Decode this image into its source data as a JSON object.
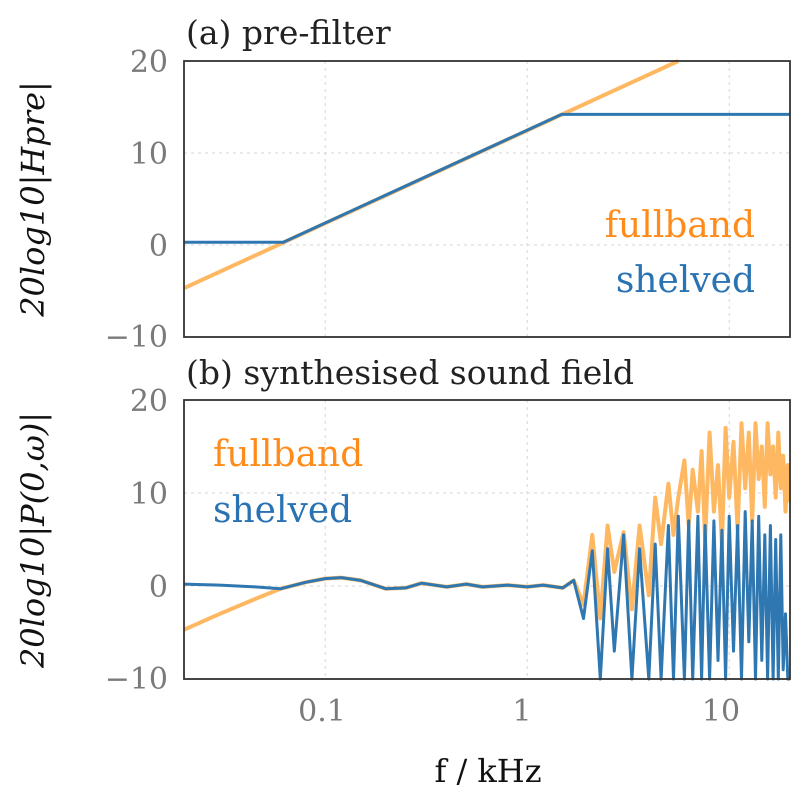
{
  "colors": {
    "fullband": "#ffb862",
    "shelved": "#2f77b1",
    "fullband_label": "#ff8c1a",
    "shelved_label": "#2a73b3",
    "tick": "#7a7a7a"
  },
  "xlabel": "f  / kHz",
  "chart_data": [
    {
      "type": "line",
      "title": "(a) pre-filter",
      "ylabel": "20log10|Hpre|",
      "xscale": "log",
      "xlim": [
        0.02,
        20
      ],
      "ylim": [
        -10,
        20
      ],
      "xticks": [
        0.1,
        1,
        10
      ],
      "xtick_labels": [
        "",
        "",
        ""
      ],
      "yticks": [
        -10,
        0,
        10,
        20
      ],
      "ytick_labels": [
        "−10",
        "0",
        "10",
        "20"
      ],
      "grid": true,
      "legend": [
        "fullband",
        "shelved"
      ],
      "legend_position": "right",
      "series": [
        {
          "name": "fullband",
          "x": [
            0.02,
            5.6
          ],
          "y": [
            -4.7,
            20
          ]
        },
        {
          "name": "shelved",
          "x": [
            0.02,
            0.062,
            1.48,
            20
          ],
          "y": [
            0.3,
            0.3,
            14.2,
            14.2
          ]
        }
      ]
    },
    {
      "type": "line",
      "title": "(b) synthesised sound field",
      "ylabel": "20log10|P(0,ω)|",
      "xscale": "log",
      "xlim": [
        0.02,
        20
      ],
      "ylim": [
        -10,
        20
      ],
      "xticks": [
        0.1,
        1,
        10
      ],
      "xtick_labels": [
        "0.1",
        "1",
        "10"
      ],
      "yticks": [
        -10,
        0,
        10,
        20
      ],
      "ytick_labels": [
        "−10",
        "0",
        "10",
        "20"
      ],
      "grid": true,
      "legend": [
        "fullband",
        "shelved"
      ],
      "legend_position": "upper left",
      "series": [
        {
          "name": "fullband",
          "x": [
            0.02,
            0.03,
            0.045,
            0.06,
            0.08,
            0.1,
            0.12,
            0.15,
            0.2,
            0.25,
            0.3,
            0.4,
            0.5,
            0.6,
            0.8,
            1.0,
            1.2,
            1.5,
            1.7,
            1.9,
            2.1,
            2.3,
            2.5,
            2.7,
            3.0,
            3.3,
            3.6,
            4.0,
            4.3,
            4.6,
            5.0,
            5.3,
            5.6,
            6.0,
            6.3,
            6.6,
            7.0,
            7.3,
            7.6,
            8.0,
            8.4,
            8.8,
            9.2,
            9.6,
            10,
            10.5,
            11,
            11.5,
            12,
            12.5,
            13,
            13.5,
            14,
            14.5,
            15,
            15.5,
            16,
            16.5,
            17,
            17.5,
            18,
            18.5,
            19,
            19.5,
            20
          ],
          "y": [
            -4.7,
            -3.0,
            -1.4,
            -0.3,
            0.4,
            0.8,
            0.9,
            0.6,
            -0.3,
            -0.2,
            0.3,
            -0.1,
            0.2,
            -0.1,
            0.1,
            -0.1,
            0.1,
            -0.2,
            0.6,
            -2.0,
            5.5,
            -3.5,
            6.5,
            1.5,
            5.8,
            -2.5,
            6.5,
            -1.0,
            9.5,
            4.5,
            11.0,
            5.5,
            9.5,
            13.5,
            6.5,
            12.5,
            8.0,
            14.5,
            5.0,
            16.5,
            8.0,
            13.0,
            4.5,
            17.0,
            9.5,
            15.5,
            6.0,
            17.5,
            10.5,
            16.5,
            7.0,
            17.5,
            11.5,
            15.0,
            8.5,
            17.5,
            12.0,
            15.0,
            9.5,
            16.5,
            10.5,
            14.0,
            8.0,
            13.0,
            9.0
          ]
        },
        {
          "name": "shelved",
          "x": [
            0.02,
            0.03,
            0.045,
            0.06,
            0.08,
            0.1,
            0.12,
            0.15,
            0.2,
            0.25,
            0.3,
            0.4,
            0.5,
            0.6,
            0.8,
            1.0,
            1.2,
            1.5,
            1.7,
            1.9,
            2.1,
            2.3,
            2.5,
            2.7,
            3.0,
            3.3,
            3.6,
            4.0,
            4.3,
            4.6,
            5.0,
            5.3,
            5.6,
            6.0,
            6.3,
            6.6,
            7.0,
            7.3,
            7.6,
            8.0,
            8.4,
            8.8,
            9.2,
            9.6,
            10,
            10.5,
            11,
            11.5,
            12,
            12.5,
            13,
            13.5,
            14,
            14.5,
            15,
            15.5,
            16,
            16.5,
            17,
            17.5,
            18,
            18.5,
            19,
            19.5,
            20
          ],
          "y": [
            0.2,
            0.1,
            -0.1,
            -0.3,
            0.4,
            0.8,
            0.9,
            0.6,
            -0.3,
            -0.2,
            0.3,
            -0.1,
            0.2,
            -0.1,
            0.1,
            -0.1,
            0.1,
            -0.2,
            0.6,
            -3.5,
            3.8,
            -10,
            4.0,
            -7.0,
            5.5,
            -10,
            4.0,
            -10,
            4.5,
            -10,
            6.5,
            -10,
            7.5,
            -10,
            7.0,
            -10,
            7.5,
            -10,
            6.5,
            -10,
            7.0,
            -8.0,
            6.0,
            -10,
            7.5,
            -7.0,
            6.5,
            -10,
            8.0,
            -6.0,
            7.0,
            -10,
            7.5,
            -8.0,
            5.5,
            -10,
            6.5,
            -10,
            5.0,
            -10,
            5.5,
            -9.0,
            -3.0,
            -10,
            -10
          ]
        }
      ]
    }
  ]
}
